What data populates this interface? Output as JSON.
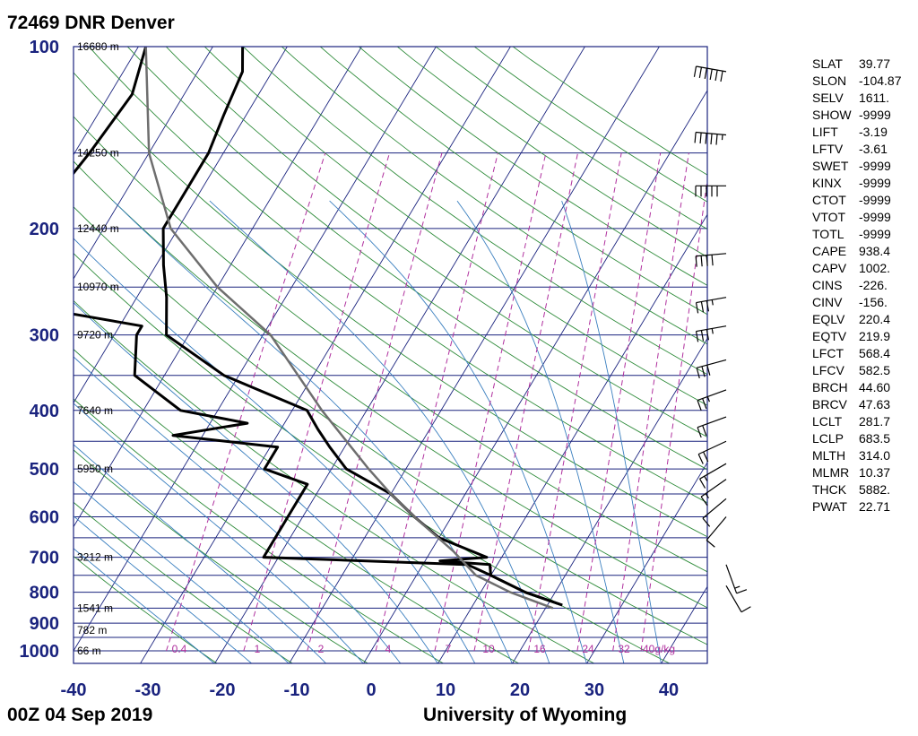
{
  "header": {
    "station": "72469 DNR Denver"
  },
  "footer": {
    "date": "00Z 04 Sep 2019",
    "credit": "University of Wyoming"
  },
  "indices": [
    {
      "name": "SLAT",
      "value": "39.77"
    },
    {
      "name": "SLON",
      "value": "-104.87"
    },
    {
      "name": "SELV",
      "value": "1611."
    },
    {
      "name": "SHOW",
      "value": "-9999"
    },
    {
      "name": "LIFT",
      "value": "-3.19"
    },
    {
      "name": "LFTV",
      "value": "-3.61"
    },
    {
      "name": "SWET",
      "value": "-9999"
    },
    {
      "name": "KINX",
      "value": "-9999"
    },
    {
      "name": "CTOT",
      "value": "-9999"
    },
    {
      "name": "VTOT",
      "value": "-9999"
    },
    {
      "name": "TOTL",
      "value": "-9999"
    },
    {
      "name": "CAPE",
      "value": "938.4"
    },
    {
      "name": "CAPV",
      "value": "1002."
    },
    {
      "name": "CINS",
      "value": "-226."
    },
    {
      "name": "CINV",
      "value": "-156."
    },
    {
      "name": "EQLV",
      "value": "220.4"
    },
    {
      "name": "EQTV",
      "value": "219.9"
    },
    {
      "name": "LFCT",
      "value": "568.4"
    },
    {
      "name": "LFCV",
      "value": "582.5"
    },
    {
      "name": "BRCH",
      "value": "44.60"
    },
    {
      "name": "BRCV",
      "value": "47.63"
    },
    {
      "name": "LCLT",
      "value": "281.7"
    },
    {
      "name": "LCLP",
      "value": "683.5"
    },
    {
      "name": "MLTH",
      "value": "314.0"
    },
    {
      "name": "MLMR",
      "value": "10.37"
    },
    {
      "name": "THCK",
      "value": "5882."
    },
    {
      "name": "PWAT",
      "value": "22.71"
    }
  ],
  "chart_data": {
    "type": "line",
    "pressure_ticks": [
      "100",
      "200",
      "300",
      "400",
      "500",
      "600",
      "700",
      "800",
      "900",
      "1000"
    ],
    "pressure_tick_values": [
      100,
      200,
      300,
      400,
      500,
      600,
      700,
      800,
      900,
      1000
    ],
    "temp_ticks": [
      "-40",
      "-30",
      "-20",
      "-10",
      "0",
      "10",
      "20",
      "30",
      "40"
    ],
    "temp_tick_values": [
      -40,
      -30,
      -20,
      -10,
      0,
      10,
      20,
      30,
      40
    ],
    "height_labels": [
      {
        "p": 100,
        "text": "16680 m"
      },
      {
        "p": 150,
        "text": "14250 m"
      },
      {
        "p": 200,
        "text": "12440 m"
      },
      {
        "p": 250,
        "text": "10970 m"
      },
      {
        "p": 300,
        "text": "9720 m"
      },
      {
        "p": 400,
        "text": "7640 m"
      },
      {
        "p": 500,
        "text": "5950 m"
      },
      {
        "p": 700,
        "text": "3212 m"
      },
      {
        "p": 850,
        "text": "1541 m"
      },
      {
        "p": 925,
        "text": "782 m"
      },
      {
        "p": 1000,
        "text": "66 m"
      }
    ],
    "mixing_ratio_labels": [
      "0.4",
      "1",
      "2",
      "4",
      "7",
      "10",
      "16",
      "24",
      "32",
      "40g/kg"
    ],
    "mixing_ratio_values": [
      0.4,
      1,
      2,
      4,
      7,
      10,
      16,
      24,
      32,
      40
    ],
    "xlim": [
      -40,
      45
    ],
    "plim": [
      1000,
      100
    ],
    "series": [
      {
        "kind": "temperature",
        "color": "#000000",
        "points": [
          [
            100,
            -66
          ],
          [
            110,
            -64
          ],
          [
            130,
            -63
          ],
          [
            150,
            -62
          ],
          [
            180,
            -62
          ],
          [
            200,
            -62
          ],
          [
            230,
            -59
          ],
          [
            260,
            -56
          ],
          [
            300,
            -53
          ],
          [
            350,
            -42
          ],
          [
            400,
            -28
          ],
          [
            430,
            -25
          ],
          [
            460,
            -22
          ],
          [
            500,
            -18
          ],
          [
            550,
            -10
          ],
          [
            600,
            -5
          ],
          [
            650,
            0
          ],
          [
            700,
            8
          ],
          [
            710,
            2
          ],
          [
            720,
            9
          ],
          [
            750,
            10
          ],
          [
            800,
            16
          ],
          [
            840,
            22
          ]
        ]
      },
      {
        "kind": "dewpoint",
        "color": "#000000",
        "points": [
          [
            100,
            -79
          ],
          [
            120,
            -77
          ],
          [
            150,
            -78
          ],
          [
            200,
            -80
          ],
          [
            230,
            -86
          ],
          [
            260,
            -75
          ],
          [
            270,
            -73
          ],
          [
            290,
            -57
          ],
          [
            300,
            -57
          ],
          [
            350,
            -54
          ],
          [
            400,
            -45
          ],
          [
            420,
            -35
          ],
          [
            440,
            -44
          ],
          [
            460,
            -29
          ],
          [
            500,
            -29
          ],
          [
            530,
            -22
          ],
          [
            600,
            -22
          ],
          [
            700,
            -22
          ],
          [
            720,
            6
          ],
          [
            750,
            10
          ],
          [
            800,
            16
          ],
          [
            840,
            22
          ]
        ]
      },
      {
        "kind": "parcel",
        "color": "#6e6e6e",
        "points": [
          [
            100,
            -79
          ],
          [
            150,
            -70
          ],
          [
            200,
            -61
          ],
          [
            250,
            -50
          ],
          [
            300,
            -39
          ],
          [
            400,
            -26
          ],
          [
            500,
            -15
          ],
          [
            550,
            -10
          ],
          [
            600,
            -5
          ],
          [
            684,
            3
          ],
          [
            750,
            8
          ],
          [
            800,
            14
          ],
          [
            850,
            21
          ]
        ]
      }
    ],
    "wind_barbs": [
      {
        "p": 110,
        "dir": 280,
        "kt": 60
      },
      {
        "p": 140,
        "dir": 275,
        "kt": 55
      },
      {
        "p": 170,
        "dir": 270,
        "kt": 50
      },
      {
        "p": 220,
        "dir": 265,
        "kt": 40
      },
      {
        "p": 260,
        "dir": 260,
        "kt": 35
      },
      {
        "p": 290,
        "dir": 260,
        "kt": 35
      },
      {
        "p": 330,
        "dir": 255,
        "kt": 30
      },
      {
        "p": 370,
        "dir": 250,
        "kt": 25
      },
      {
        "p": 410,
        "dir": 250,
        "kt": 20
      },
      {
        "p": 450,
        "dir": 245,
        "kt": 20
      },
      {
        "p": 490,
        "dir": 240,
        "kt": 15
      },
      {
        "p": 520,
        "dir": 235,
        "kt": 15
      },
      {
        "p": 560,
        "dir": 230,
        "kt": 10
      },
      {
        "p": 600,
        "dir": 220,
        "kt": 10
      },
      {
        "p": 720,
        "dir": 160,
        "kt": 15
      },
      {
        "p": 780,
        "dir": 150,
        "kt": 10
      }
    ],
    "grid": true
  }
}
